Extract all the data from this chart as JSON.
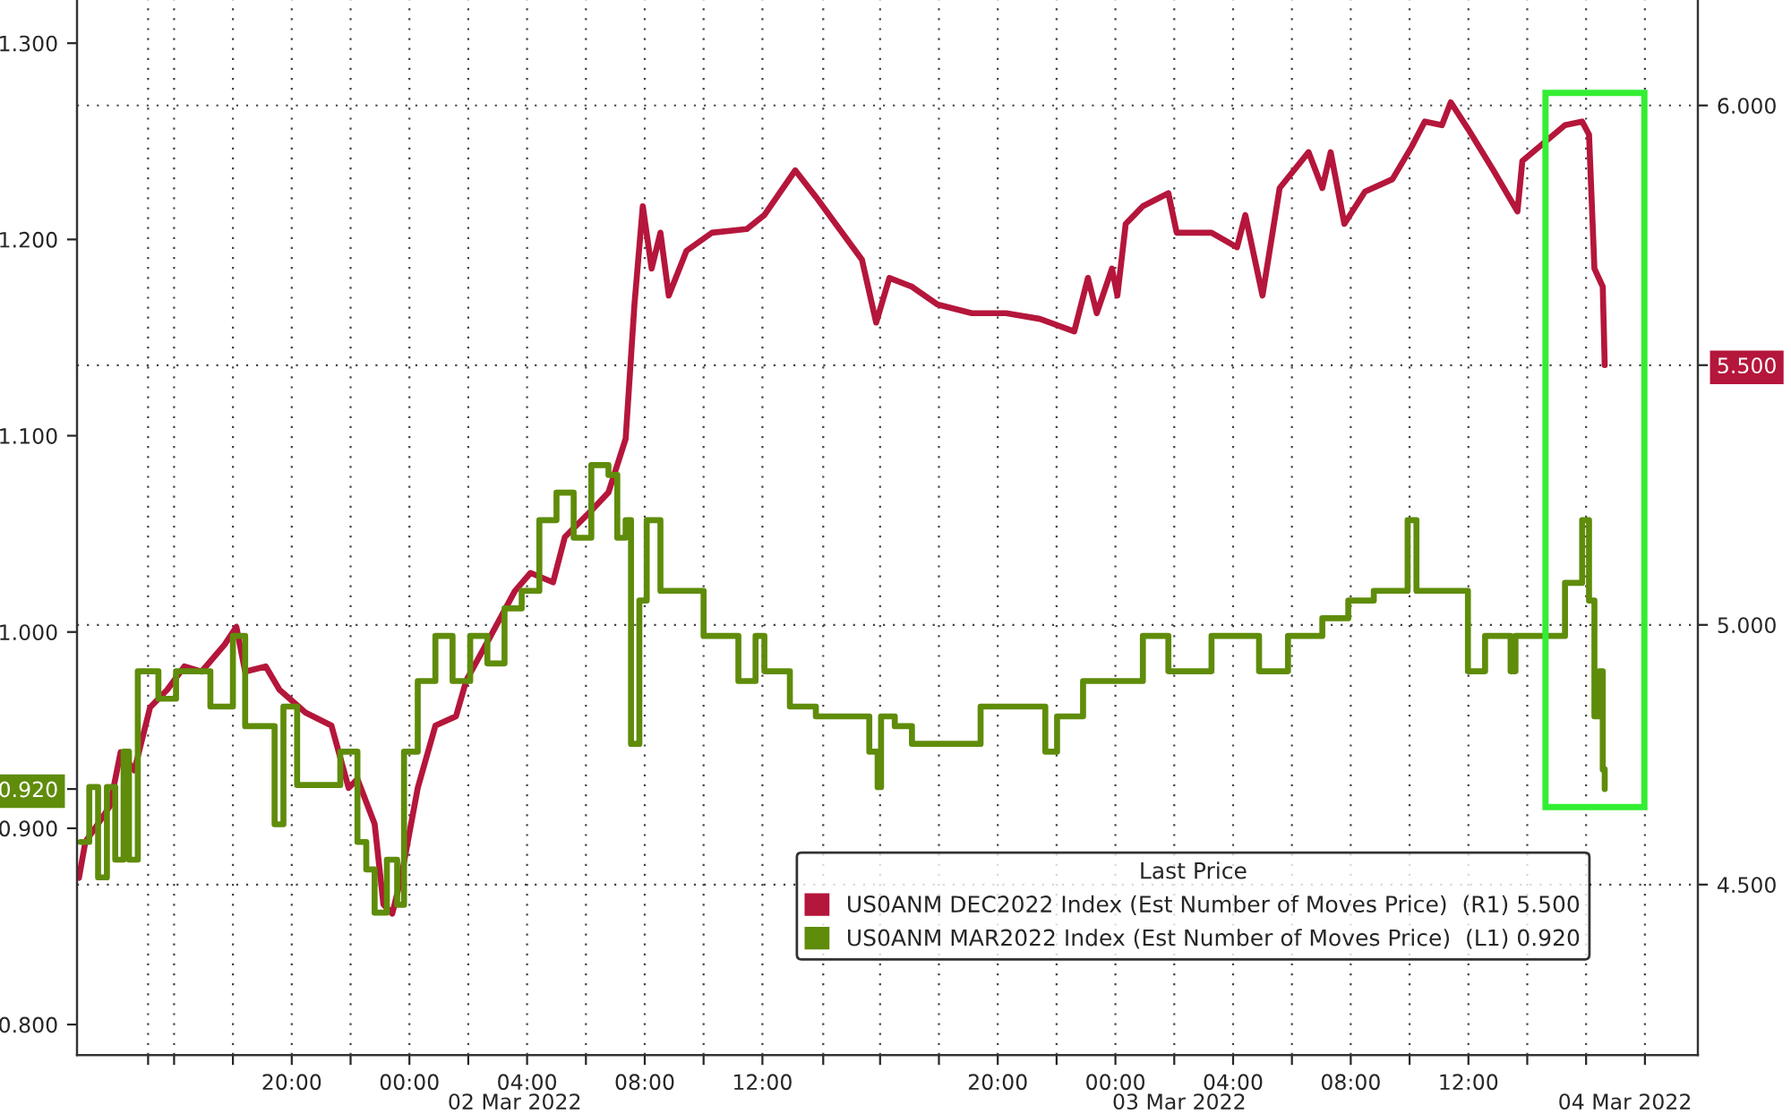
{
  "chart_data": {
    "type": "line",
    "xlim": [
      "2022-03-01T12:42",
      "2022-03-03T19:48"
    ],
    "xticks": [
      {
        "value": "2022-03-01T15:07",
        "label": null
      },
      {
        "value": "2022-03-01T16:00",
        "label": null
      },
      {
        "value": "2022-03-01T18:00",
        "label": null
      },
      {
        "value": "2022-03-01T20:00",
        "label": "20:00"
      },
      {
        "value": "2022-03-01T22:00",
        "label": null
      },
      {
        "value": "2022-03-02T00:00",
        "label": "00:00"
      },
      {
        "value": "2022-03-02T02:00",
        "label": null
      },
      {
        "value": "2022-03-02T04:00",
        "label": "04:00"
      },
      {
        "value": "2022-03-02T06:00",
        "label": null
      },
      {
        "value": "2022-03-02T08:00",
        "label": "08:00"
      },
      {
        "value": "2022-03-02T10:00",
        "label": null
      },
      {
        "value": "2022-03-02T12:00",
        "label": "12:00"
      },
      {
        "value": "2022-03-02T14:04",
        "label": null
      },
      {
        "value": "2022-03-02T16:00",
        "label": null
      },
      {
        "value": "2022-03-02T18:00",
        "label": null
      },
      {
        "value": "2022-03-02T20:00",
        "label": "20:00"
      },
      {
        "value": "2022-03-02T22:00",
        "label": null
      },
      {
        "value": "2022-03-03T00:00",
        "label": "00:00"
      },
      {
        "value": "2022-03-03T02:00",
        "label": null
      },
      {
        "value": "2022-03-03T04:00",
        "label": "04:00"
      },
      {
        "value": "2022-03-03T06:00",
        "label": null
      },
      {
        "value": "2022-03-03T08:00",
        "label": "08:00"
      },
      {
        "value": "2022-03-03T10:00",
        "label": null
      },
      {
        "value": "2022-03-03T12:00",
        "label": "12:00"
      },
      {
        "value": "2022-03-03T14:00",
        "label": null
      },
      {
        "value": "2022-03-03T16:00",
        "label": null
      },
      {
        "value": "2022-03-03T18:00",
        "label": null
      }
    ],
    "ylim": [
      0.7845,
      1.322
    ],
    "yticks": [
      {
        "value": 0.8,
        "label": "0.800"
      },
      {
        "value": 0.9,
        "label": "0.900"
      },
      {
        "value": 0.92,
        "label": "0.920"
      },
      {
        "value": 1.0,
        "label": "1.000"
      },
      {
        "value": 1.1,
        "label": "1.100"
      },
      {
        "value": 1.2,
        "label": "1.200"
      },
      {
        "value": 1.3,
        "label": "1.300"
      }
    ],
    "y2lim": [
      4.172,
      6.203
    ],
    "y2ticks": [
      {
        "value": 4.5,
        "label": "4.500"
      },
      {
        "value": 5.0,
        "label": "5.000"
      },
      {
        "value": 5.5,
        "label": "5.500"
      },
      {
        "value": 6.0,
        "label": "6.000"
      }
    ],
    "grid": true,
    "legend": "bottom right",
    "legend_title": "Last Price",
    "line_style": "solid",
    "marker": "none",
    "annotations": [
      "02 Mar 2022",
      "03 Mar 2022",
      "04 Mar 2022"
    ],
    "series": [
      {
        "name": "US0ANM DEC2022 Index (Est Number of Moves Price)  (R1) 5.500",
        "color": "#b5163b",
        "axis": "y2",
        "x": [
          "2022-03-01T12:46",
          "2022-03-01T12:59",
          "2022-03-01T13:25",
          "2022-03-01T13:49",
          "2022-03-01T14:11",
          "2022-03-01T14:39",
          "2022-03-01T15:11",
          "2022-03-01T15:46",
          "2022-03-01T16:21",
          "2022-03-01T16:56",
          "2022-03-01T17:43",
          "2022-03-01T18:07",
          "2022-03-01T18:25",
          "2022-03-01T19:07",
          "2022-03-01T19:35",
          "2022-03-01T20:28",
          "2022-03-01T21:21",
          "2022-03-01T21:56",
          "2022-03-01T22:14",
          "2022-03-01T22:49",
          "2022-03-01T23:07",
          "2022-03-01T23:25",
          "2022-03-01T23:43",
          "2022-03-02T00:17",
          "2022-03-02T00:53",
          "2022-03-02T01:35",
          "2022-03-02T01:56",
          "2022-03-02T02:46",
          "2022-03-02T03:35",
          "2022-03-02T04:07",
          "2022-03-02T04:53",
          "2022-03-02T05:17",
          "2022-03-02T06:11",
          "2022-03-02T06:46",
          "2022-03-02T07:21",
          "2022-03-02T07:39",
          "2022-03-02T07:56",
          "2022-03-02T08:14",
          "2022-03-02T08:32",
          "2022-03-02T08:49",
          "2022-03-02T09:25",
          "2022-03-02T10:17",
          "2022-03-02T11:28",
          "2022-03-02T12:04",
          "2022-03-02T13:07",
          "2022-03-02T13:49",
          "2022-03-02T15:23",
          "2022-03-02T15:52",
          "2022-03-02T16:19",
          "2022-03-02T17:05",
          "2022-03-02T17:57",
          "2022-03-02T19:07",
          "2022-03-02T20:17",
          "2022-03-02T21:26",
          "2022-03-02T22:36",
          "2022-03-02T23:04",
          "2022-03-02T23:22",
          "2022-03-02T23:53",
          "2022-03-03T00:04",
          "2022-03-03T00:21",
          "2022-03-03T00:56",
          "2022-03-03T01:48",
          "2022-03-03T02:05",
          "2022-03-03T03:16",
          "2022-03-03T04:08",
          "2022-03-03T04:25",
          "2022-03-03T05:00",
          "2022-03-03T05:35",
          "2022-03-03T06:34",
          "2022-03-03T07:02",
          "2022-03-03T07:19",
          "2022-03-03T07:47",
          "2022-03-03T08:29",
          "2022-03-03T09:25",
          "2022-03-03T10:04",
          "2022-03-03T10:31",
          "2022-03-03T11:06",
          "2022-03-03T11:24",
          "2022-03-03T11:59",
          "2022-03-03T12:51",
          "2022-03-03T13:40",
          "2022-03-03T13:50",
          "2022-03-03T15:17",
          "2022-03-03T15:52",
          "2022-03-03T16:06",
          "2022-03-03T16:17",
          "2022-03-03T16:34",
          "2022-03-03T16:38"
        ],
        "values": [
          4.513,
          4.582,
          4.617,
          4.651,
          4.755,
          4.72,
          4.841,
          4.875,
          4.92,
          4.91,
          4.962,
          4.996,
          4.91,
          4.92,
          4.875,
          4.831,
          4.806,
          4.686,
          4.703,
          4.617,
          4.462,
          4.444,
          4.513,
          4.686,
          4.806,
          4.824,
          4.893,
          4.979,
          5.065,
          5.1,
          5.082,
          5.169,
          5.22,
          5.255,
          5.358,
          5.617,
          5.806,
          5.686,
          5.755,
          5.634,
          5.72,
          5.755,
          5.762,
          5.789,
          5.875,
          5.824,
          5.703,
          5.582,
          5.668,
          5.651,
          5.617,
          5.6,
          5.6,
          5.589,
          5.565,
          5.668,
          5.6,
          5.686,
          5.634,
          5.772,
          5.806,
          5.831,
          5.755,
          5.755,
          5.727,
          5.789,
          5.634,
          5.841,
          5.91,
          5.841,
          5.91,
          5.772,
          5.834,
          5.858,
          5.92,
          5.969,
          5.962,
          6.006,
          5.955,
          5.875,
          5.796,
          5.893,
          5.962,
          5.969,
          5.944,
          5.686,
          5.651,
          5.5
        ]
      },
      {
        "name": "US0ANM MAR2022 Index (Est Number of Moves Price)  (L1) 0.920",
        "color": "#5f8c0a",
        "axis": "y",
        "type": "step",
        "x": [
          "2022-03-01T12:49",
          "2022-03-01T13:07",
          "2022-03-01T13:25",
          "2022-03-01T13:43",
          "2022-03-01T14:00",
          "2022-03-01T14:17",
          "2022-03-01T14:28",
          "2022-03-01T14:46",
          "2022-03-01T15:28",
          "2022-03-01T16:04",
          "2022-03-01T17:14",
          "2022-03-01T18:00",
          "2022-03-01T18:25",
          "2022-03-01T19:00",
          "2022-03-01T19:25",
          "2022-03-01T19:43",
          "2022-03-01T20:11",
          "2022-03-01T21:21",
          "2022-03-01T21:39",
          "2022-03-01T22:14",
          "2022-03-01T22:32",
          "2022-03-01T22:49",
          "2022-03-01T23:14",
          "2022-03-01T23:35",
          "2022-03-01T23:49",
          "2022-03-02T00:17",
          "2022-03-02T00:53",
          "2022-03-02T01:28",
          "2022-03-02T02:04",
          "2022-03-02T02:39",
          "2022-03-02T03:14",
          "2022-03-02T03:49",
          "2022-03-02T04:25",
          "2022-03-02T05:00",
          "2022-03-02T05:35",
          "2022-03-02T06:11",
          "2022-03-02T06:46",
          "2022-03-02T07:04",
          "2022-03-02T07:21",
          "2022-03-02T07:32",
          "2022-03-02T07:49",
          "2022-03-02T08:04",
          "2022-03-02T08:32",
          "2022-03-02T09:43",
          "2022-03-02T10:00",
          "2022-03-02T10:53",
          "2022-03-02T11:11",
          "2022-03-02T11:46",
          "2022-03-02T12:04",
          "2022-03-02T12:56",
          "2022-03-02T13:49",
          "2022-03-02T15:38",
          "2022-03-02T15:55",
          "2022-03-02T16:02",
          "2022-03-02T16:30",
          "2022-03-02T17:05",
          "2022-03-02T18:50",
          "2022-03-02T19:25",
          "2022-03-02T20:34",
          "2022-03-02T21:37",
          "2022-03-02T22:01",
          "2022-03-02T22:54",
          "2022-03-02T23:46",
          "2022-03-03T00:56",
          "2022-03-03T01:48",
          "2022-03-03T02:40",
          "2022-03-03T03:16",
          "2022-03-03T04:53",
          "2022-03-03T05:52",
          "2022-03-03T07:02",
          "2022-03-03T07:55",
          "2022-03-03T08:47",
          "2022-03-03T09:56",
          "2022-03-03T10:14",
          "2022-03-03T11:41",
          "2022-03-03T11:59",
          "2022-03-03T12:34",
          "2022-03-03T13:26",
          "2022-03-03T13:36",
          "2022-03-03T15:17",
          "2022-03-03T15:42",
          "2022-03-03T15:52",
          "2022-03-03T16:06",
          "2022-03-03T16:17",
          "2022-03-03T16:27",
          "2022-03-03T16:34",
          "2022-03-03T16:38"
        ],
        "values": [
          0.893,
          0.921,
          0.875,
          0.921,
          0.884,
          0.939,
          0.884,
          0.98,
          0.966,
          0.98,
          0.962,
          0.998,
          0.952,
          0.952,
          0.902,
          0.962,
          0.922,
          0.922,
          0.939,
          0.893,
          0.879,
          0.857,
          0.884,
          0.861,
          0.939,
          0.975,
          0.998,
          0.975,
          0.998,
          0.984,
          1.012,
          1.021,
          1.057,
          1.071,
          1.048,
          1.085,
          1.08,
          1.048,
          1.057,
          0.943,
          1.016,
          1.057,
          1.021,
          1.021,
          0.998,
          0.998,
          0.975,
          0.998,
          0.98,
          0.962,
          0.957,
          0.939,
          0.921,
          0.957,
          0.952,
          0.943,
          0.943,
          0.962,
          0.962,
          0.939,
          0.957,
          0.975,
          0.975,
          0.998,
          0.98,
          0.98,
          0.998,
          0.98,
          0.998,
          1.007,
          1.016,
          1.021,
          1.057,
          1.021,
          1.021,
          0.98,
          0.998,
          0.98,
          0.998,
          1.025,
          1.025,
          1.057,
          1.016,
          0.957,
          0.98,
          0.93,
          0.92
        ]
      }
    ]
  }
}
